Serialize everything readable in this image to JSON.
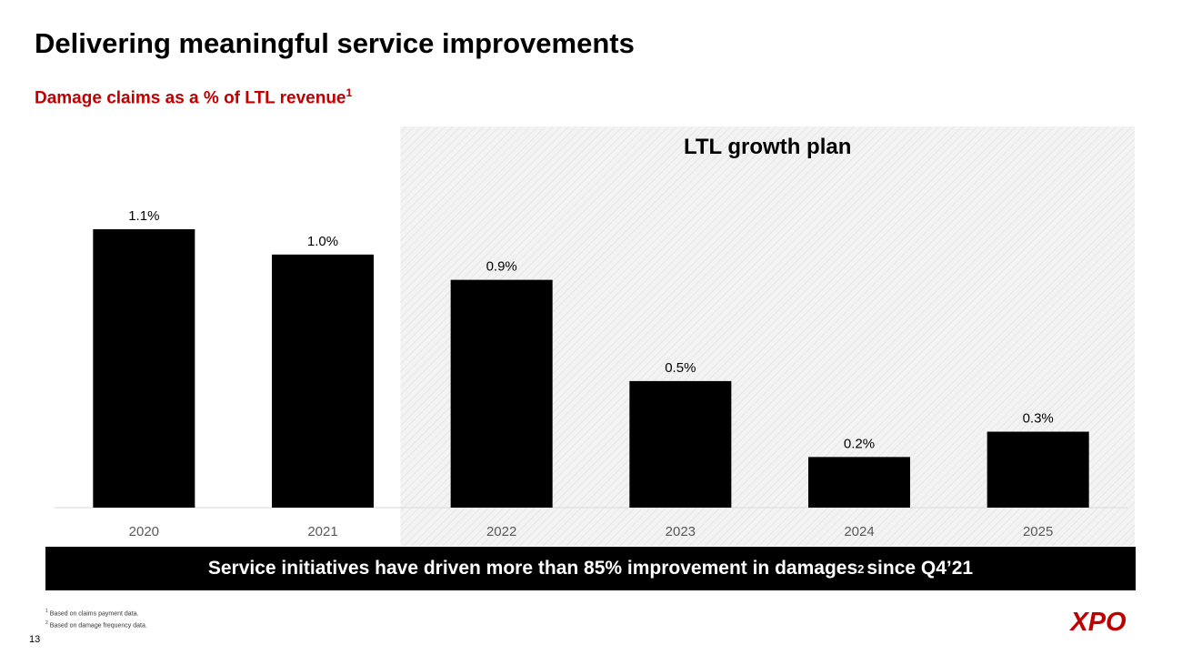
{
  "slide": {
    "title": "Delivering meaningful service improvements",
    "subtitle": "Damage claims as a % of LTL revenue",
    "subtitle_sup": "1",
    "page_number": "13"
  },
  "banner": {
    "text_before": "Service initiatives have driven more than 85% improvement in damages",
    "sup": "2",
    "text_after": " since Q4’21"
  },
  "footnotes": [
    {
      "mark": "1",
      "text": "Based on claims payment data."
    },
    {
      "mark": "2",
      "text": "Based on damage frequency data."
    }
  ],
  "logo": {
    "text": "XPO"
  },
  "colors": {
    "accent": "#c00000",
    "bar": "#000000",
    "panel": "#f2f2f2",
    "axis_text": "#595959"
  },
  "chart_data": {
    "type": "bar",
    "title": "Damage claims as a % of LTL revenue",
    "categories": [
      "2020",
      "2021",
      "2022",
      "2023",
      "2024",
      "2025"
    ],
    "values": [
      1.1,
      1.0,
      0.9,
      0.5,
      0.2,
      0.3
    ],
    "data_labels": [
      "1.1%",
      "1.0%",
      "0.9%",
      "0.5%",
      "0.2%",
      "0.3%"
    ],
    "unit": "%",
    "ylim": [
      0,
      1.1
    ],
    "grid": false,
    "xlabel": "",
    "ylabel": "",
    "annotation": {
      "label": "LTL growth plan",
      "start_category": "2022",
      "end_category": "2025"
    }
  }
}
